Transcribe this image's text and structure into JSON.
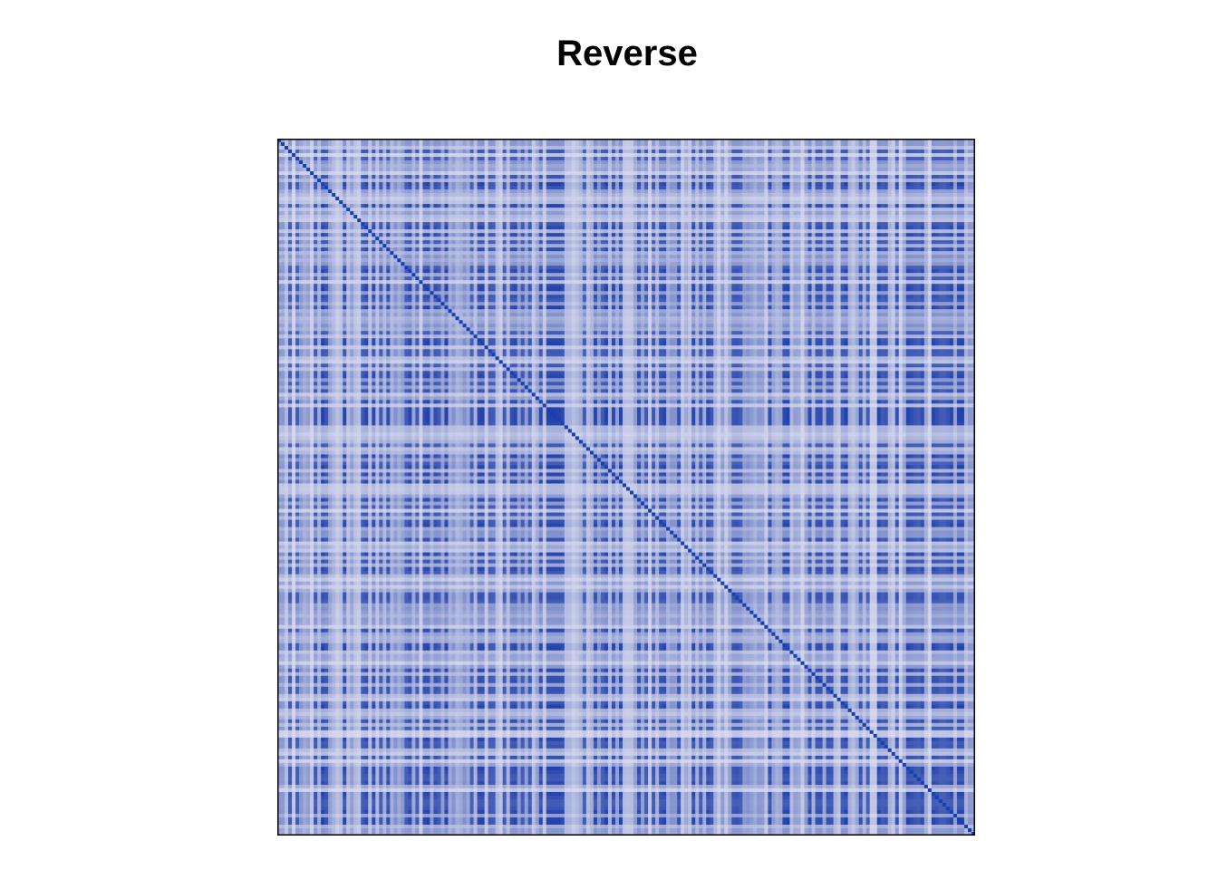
{
  "chart_data": {
    "type": "heatmap",
    "title": "Reverse",
    "n": 192,
    "color_low": "#d9dbee",
    "color_high": "#1f3ea8",
    "diagonal_color": "#1a3fb0",
    "frame_color": "#000000",
    "axes": "none",
    "legend": "none"
  }
}
